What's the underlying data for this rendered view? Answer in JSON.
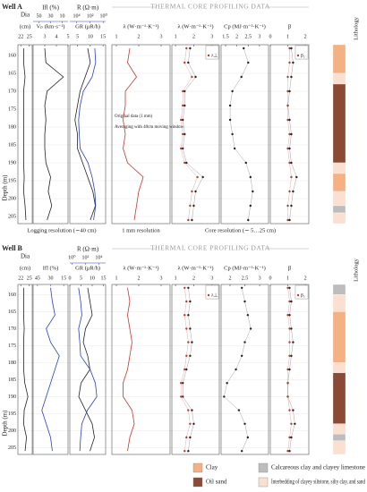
{
  "wells": [
    {
      "name": "Well A",
      "header": "THERMAL CORE PROFILING DATA",
      "depth_label": "Depth (m)",
      "lithology_label": "Lithology",
      "ylim": [
        157,
        207
      ],
      "yticks": [
        160,
        165,
        170,
        175,
        180,
        185,
        190,
        195,
        200,
        205
      ],
      "depth": [
        158,
        162,
        166,
        170,
        174,
        178,
        182,
        186,
        190,
        194,
        198,
        202,
        206
      ],
      "panels": [
        {
          "type": "line",
          "top_label": "Dia",
          "label": "(cm)",
          "xlim": [
            21,
            26
          ],
          "xticks": [
            22,
            25
          ],
          "series": [
            {
              "color": "#222222",
              "values": [
                23,
                23,
                23.5,
                23,
                23,
                23,
                23,
                23,
                23,
                23.2,
                23,
                23.5,
                23.8
              ]
            }
          ]
        },
        {
          "type": "line",
          "label": "Vₚ (km·s⁻¹)",
          "xlim": [
            2,
            5
          ],
          "xticks": [
            3,
            4,
            5
          ],
          "top_axis": {
            "label": "Ifl (%)",
            "color": "#2a3fbf",
            "xlim": [
              60,
              0
            ],
            "xticks": [
              50,
              30,
              10
            ]
          },
          "series": [
            {
              "color": "#222222",
              "values": [
                3.0,
                3.1,
                4.6,
                3.2,
                3.0,
                3.1,
                3.0,
                3.0,
                3.1,
                3.5,
                3.3,
                3.6,
                3.2
              ]
            }
          ]
        },
        {
          "type": "line",
          "label": "GR (μR/h)",
          "xlim": [
            2,
            16
          ],
          "xticks": [
            5,
            10,
            15
          ],
          "top_axis": {
            "label": "R (Ω·m)",
            "color": "#2a3fbf",
            "log": true,
            "xlim": [
              100000,
              0.5
            ],
            "xticks": [
              {
                "value": 10000,
                "label": "10⁴"
              },
              {
                "value": 100,
                "label": "10²"
              },
              {
                "value": 1,
                "label": "10⁰"
              }
            ]
          },
          "series": [
            {
              "color": "#222222",
              "values": [
                9,
                10,
                8,
                6,
                5,
                4,
                5,
                5,
                7,
                9,
                11,
                12,
                10
              ]
            },
            {
              "color": "#2a3fbf",
              "axis": "top",
              "values": [
                20,
                15,
                50,
                1000,
                3000,
                5000,
                4000,
                3000,
                200,
                50,
                20,
                15,
                30
              ]
            }
          ]
        },
        {
          "type": "line",
          "label": "λ (W·m⁻¹·K⁻¹)",
          "xlim": [
            0.8,
            3.4
          ],
          "xticks": [
            1,
            2,
            3
          ],
          "annotations": [
            "Original data (1 mm)",
            "Averaging with 40cm moving window"
          ],
          "series": [
            {
              "color": "#c0392b",
              "values": [
                1.6,
                1.5,
                1.9,
                1.4,
                1.4,
                1.3,
                1.4,
                1.3,
                1.5,
                2.2,
                2.0,
                1.9,
                1.8
              ]
            }
          ]
        },
        {
          "type": "scatter",
          "label": "λ (W·m⁻¹·K⁻¹)",
          "xlim": [
            0.8,
            3.4
          ],
          "xticks": [
            1,
            2,
            3
          ],
          "series": [
            {
              "name": "λ∥",
              "color": "#222222",
              "values": [
                1.8,
                1.7,
                2.1,
                1.5,
                1.5,
                1.4,
                1.5,
                1.4,
                1.6,
                2.5,
                2.1,
                2.0,
                1.9
              ]
            },
            {
              "name": "λ⊥",
              "color": "#c0392b",
              "values": [
                1.6,
                1.5,
                1.9,
                1.4,
                1.4,
                1.3,
                1.4,
                1.3,
                1.5,
                2.2,
                1.9,
                1.8,
                1.7
              ]
            }
          ]
        },
        {
          "type": "scatter",
          "label": "Cp (MJ·m⁻³·K⁻¹)",
          "xlim": [
            1.3,
            3.4
          ],
          "xticks": [
            1.5,
            2,
            2.5,
            3
          ],
          "series": [
            {
              "color": "#222222",
              "values": [
                2.3,
                2.5,
                2.2,
                1.8,
                1.7,
                1.7,
                1.8,
                1.9,
                2.4,
                2.6,
                2.7,
                2.6,
                2.5
              ]
            }
          ]
        },
        {
          "type": "scatter",
          "label": "β",
          "xlim": [
            0,
            2.2
          ],
          "xticks": [
            0,
            1,
            2
          ],
          "series": [
            {
              "name": "β₁",
              "color": "#222222",
              "values": [
                1.2,
                1.3,
                1.2,
                1.1,
                1.0,
                1.1,
                1.2,
                1.1,
                1.2,
                1.5,
                1.3,
                1.2,
                1.1
              ]
            },
            {
              "name": "β₂",
              "color": "#c0392b",
              "values": [
                1.1,
                1.1,
                1.0,
                1.0,
                1.0,
                1.0,
                1.1,
                1.0,
                1.1,
                1.2,
                1.1,
                1.0,
                1.0
              ]
            }
          ]
        }
      ],
      "footers": [
        "Logging resolution (∼40 cm)",
        "1 mm resolution",
        "Core resolution (∼ 5…25 cm)"
      ],
      "lithology": [
        {
          "top": 157,
          "bottom": 165,
          "type": 0
        },
        {
          "top": 165,
          "bottom": 168,
          "type": 3
        },
        {
          "top": 168,
          "bottom": 190,
          "type": 1
        },
        {
          "top": 190,
          "bottom": 193,
          "type": 3
        },
        {
          "top": 193,
          "bottom": 198,
          "type": 0
        },
        {
          "top": 198,
          "bottom": 202,
          "type": 3
        },
        {
          "top": 202,
          "bottom": 204,
          "type": 2
        },
        {
          "top": 204,
          "bottom": 207,
          "type": 3
        }
      ]
    },
    {
      "name": "Well B",
      "header": "THERMAL CORE PROFILING DATA",
      "depth_label": "Depth (m)",
      "lithology_label": "Lithology",
      "ylim": [
        157,
        207
      ],
      "yticks": [
        160,
        165,
        170,
        175,
        180,
        185,
        190,
        195,
        200,
        205
      ],
      "depth": [
        158,
        162,
        166,
        170,
        174,
        178,
        182,
        186,
        190,
        194,
        198,
        202,
        206
      ],
      "panels": [
        {
          "type": "line",
          "top_label": "Dia",
          "label": "(cm)",
          "xlim": [
            21,
            26
          ],
          "xticks": [
            22,
            25
          ],
          "series": [
            {
              "color": "#222222",
              "values": [
                23,
                23,
                23,
                23.2,
                23,
                23,
                23,
                23.4,
                24.5,
                23.2,
                23,
                24,
                23.5
              ]
            }
          ]
        },
        {
          "type": "line",
          "label": "Ifl (%)",
          "label_color": "#2a3fbf",
          "xlim": [
            50,
            10
          ],
          "xticks": [
            45,
            30,
            15
          ],
          "series": [
            {
              "color": "#2a3fbf",
              "values": [
                30,
                28,
                25,
                35,
                30,
                20,
                25,
                30,
                35,
                40,
                35,
                30,
                28
              ]
            }
          ]
        },
        {
          "type": "line",
          "label": "GR (μR/h)",
          "xlim": [
            0,
            16
          ],
          "xticks": [
            0,
            5,
            10,
            15
          ],
          "top_axis": {
            "label": "R (Ω·m)",
            "color": "#2a3fbf",
            "log": true,
            "xlim": [
              0.5,
              100000
            ],
            "xticks": [
              {
                "value": 1,
                "label": "10⁰"
              },
              {
                "value": 100,
                "label": "10²"
              },
              {
                "value": 10000,
                "label": "10⁴"
              }
            ]
          },
          "series": [
            {
              "color": "#222222",
              "values": [
                8,
                9,
                10,
                7,
                6,
                8,
                9,
                5,
                4,
                7,
                10,
                11,
                9
              ]
            },
            {
              "color": "#2a3fbf",
              "axis": "top",
              "values": [
                10,
                20,
                30,
                10,
                15,
                20,
                500,
                3000,
                5000,
                200,
                30,
                20,
                15
              ]
            }
          ]
        },
        {
          "type": "line",
          "label": "λ (W·m⁻¹·K⁻¹)",
          "xlim": [
            0.8,
            3.4
          ],
          "xticks": [
            1,
            2,
            3
          ],
          "series": [
            {
              "color": "#c0392b",
              "values": [
                1.5,
                1.6,
                1.5,
                1.6,
                1.7,
                1.6,
                1.5,
                1.3,
                1.3,
                1.7,
                1.8,
                1.6,
                1.5
              ]
            }
          ]
        },
        {
          "type": "scatter",
          "label": "λ (W·m⁻¹·K⁻¹)",
          "xlim": [
            0.8,
            3.4
          ],
          "xticks": [
            1,
            2,
            3
          ],
          "series": [
            {
              "name": "λ∥",
              "color": "#222222",
              "values": [
                1.7,
                1.8,
                1.7,
                1.8,
                1.9,
                1.8,
                1.6,
                1.4,
                1.4,
                1.9,
                2.0,
                1.8,
                1.7
              ]
            },
            {
              "name": "λ⊥",
              "color": "#c0392b",
              "values": [
                1.5,
                1.6,
                1.5,
                1.6,
                1.7,
                1.6,
                1.5,
                1.3,
                1.3,
                1.7,
                1.8,
                1.6,
                1.5
              ]
            }
          ]
        },
        {
          "type": "scatter",
          "label": "Cp (MJ·m⁻³·K⁻¹)",
          "xlim": [
            1.7,
            3.3
          ],
          "xticks": [
            2,
            2.5,
            3
          ],
          "series": [
            {
              "color": "#222222",
              "values": [
                2.4,
                2.5,
                2.6,
                2.7,
                2.5,
                2.4,
                2.2,
                1.9,
                1.8,
                2.3,
                2.5,
                2.6,
                2.4
              ]
            }
          ]
        },
        {
          "type": "scatter",
          "label": "β",
          "xlim": [
            0,
            2.2
          ],
          "xticks": [
            0,
            1,
            2
          ],
          "series": [
            {
              "name": "β₁",
              "color": "#222222",
              "values": [
                1.1,
                1.2,
                1.1,
                1.2,
                1.3,
                1.2,
                1.1,
                1.0,
                1.0,
                1.3,
                1.4,
                1.2,
                1.1
              ]
            },
            {
              "name": "β₂",
              "color": "#c0392b",
              "values": [
                1.0,
                1.1,
                1.0,
                1.1,
                1.1,
                1.1,
                1.0,
                1.0,
                1.0,
                1.1,
                1.2,
                1.1,
                1.0
              ]
            }
          ]
        }
      ],
      "lithology": [
        {
          "top": 157,
          "bottom": 160,
          "type": 2
        },
        {
          "top": 160,
          "bottom": 165,
          "type": 3
        },
        {
          "top": 165,
          "bottom": 180,
          "type": 0
        },
        {
          "top": 180,
          "bottom": 183,
          "type": 3
        },
        {
          "top": 183,
          "bottom": 198,
          "type": 1
        },
        {
          "top": 198,
          "bottom": 201,
          "type": 3
        },
        {
          "top": 201,
          "bottom": 203,
          "type": 2
        },
        {
          "top": 203,
          "bottom": 207,
          "type": 3
        }
      ]
    }
  ],
  "legend": [
    {
      "name": "Clay",
      "color": "#f4b183"
    },
    {
      "name": "Oil sand",
      "color": "#8b4a36"
    },
    {
      "name": "Calcareous clay and clayey limestone",
      "color": "#bdbdbd"
    },
    {
      "name": "Interbedding of clayey siltstone, silty clay, and sand",
      "color": "#fbe0d2"
    }
  ]
}
